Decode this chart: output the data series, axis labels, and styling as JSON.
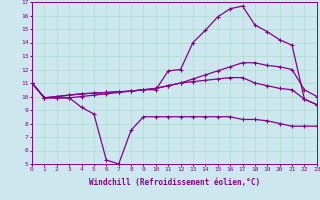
{
  "xlabel": "Windchill (Refroidissement éolien,°C)",
  "bg_color": "#cce8ee",
  "line_color": "#880088",
  "grid_color": "#aaddcc",
  "xmin": 0,
  "xmax": 23,
  "ymin": 5,
  "ymax": 17,
  "line1_zigzag": {
    "x": [
      0,
      1,
      2,
      3,
      4,
      5,
      6,
      7,
      8,
      9,
      10,
      11,
      12,
      13,
      14,
      15,
      16,
      17,
      18,
      19,
      20,
      21,
      22,
      23
    ],
    "y": [
      11.0,
      9.9,
      9.9,
      9.9,
      9.2,
      8.7,
      5.3,
      5.0,
      7.5,
      8.5,
      8.5,
      8.5,
      8.5,
      8.5,
      8.5,
      8.5,
      8.5,
      8.3,
      8.3,
      8.2,
      8.0,
      7.8,
      7.8,
      7.8
    ]
  },
  "line2_peak": {
    "x": [
      0,
      1,
      2,
      3,
      4,
      5,
      6,
      7,
      8,
      9,
      10,
      11,
      12,
      13,
      14,
      15,
      16,
      17,
      18,
      19,
      20,
      21,
      22,
      23
    ],
    "y": [
      11.0,
      9.9,
      9.9,
      9.9,
      10.0,
      10.1,
      10.2,
      10.3,
      10.4,
      10.5,
      10.5,
      11.9,
      12.0,
      14.0,
      14.9,
      15.9,
      16.5,
      16.7,
      15.3,
      14.8,
      14.2,
      13.8,
      9.8,
      9.4
    ]
  },
  "line3_mid": {
    "x": [
      0,
      1,
      2,
      3,
      4,
      5,
      6,
      7,
      8,
      9,
      10,
      11,
      12,
      13,
      14,
      15,
      16,
      17,
      18,
      19,
      20,
      21,
      22,
      23
    ],
    "y": [
      11.0,
      9.9,
      10.0,
      10.1,
      10.2,
      10.25,
      10.3,
      10.35,
      10.4,
      10.5,
      10.6,
      10.8,
      11.0,
      11.3,
      11.6,
      11.9,
      12.2,
      12.5,
      12.5,
      12.3,
      12.2,
      12.0,
      10.5,
      10.0
    ]
  },
  "line4_lower": {
    "x": [
      0,
      1,
      2,
      3,
      4,
      5,
      6,
      7,
      8,
      9,
      10,
      11,
      12,
      13,
      14,
      15,
      16,
      17,
      18,
      19,
      20,
      21,
      22,
      23
    ],
    "y": [
      11.0,
      9.9,
      10.0,
      10.1,
      10.2,
      10.25,
      10.3,
      10.35,
      10.4,
      10.5,
      10.6,
      10.8,
      11.0,
      11.1,
      11.2,
      11.3,
      11.4,
      11.4,
      11.0,
      10.8,
      10.6,
      10.5,
      9.8,
      9.4
    ]
  }
}
